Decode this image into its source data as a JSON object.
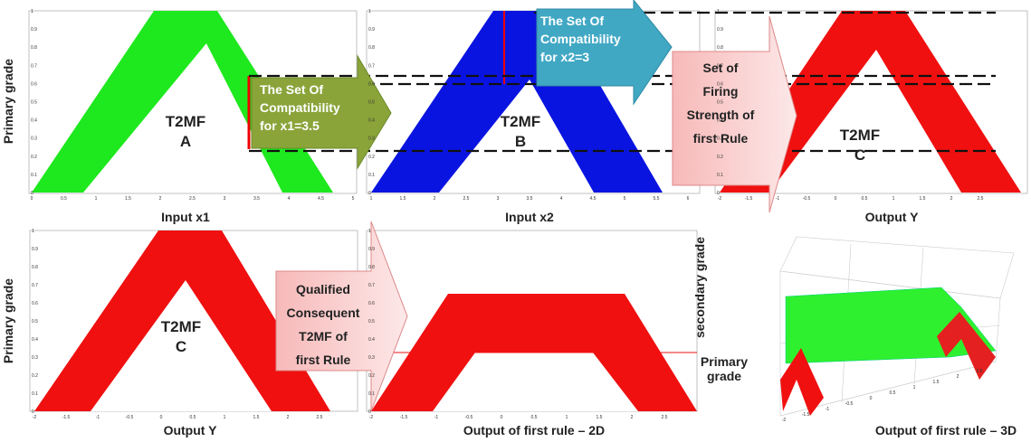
{
  "panels": [
    {
      "inner": [
        "T2MF",
        "A"
      ],
      "xlabel": "Input x1",
      "ylabel": "Primary grade",
      "xticks": [
        0,
        0.5,
        1,
        1.5,
        2,
        2.5,
        3,
        3.5,
        4,
        4.5,
        5
      ],
      "yticks": [
        0,
        0.1,
        0.2,
        0.3,
        0.4,
        0.5,
        0.6,
        0.7,
        0.8,
        0.9,
        1
      ]
    },
    {
      "inner": [
        "T2MF",
        "B"
      ],
      "xlabel": "Input x2",
      "xticks": [
        1,
        1.5,
        2,
        2.5,
        3,
        3.5,
        4,
        4.5,
        5,
        5.5,
        6
      ],
      "yticks": [
        0,
        0.1,
        0.2,
        0.3,
        0.4,
        0.5,
        0.6,
        0.7,
        0.8,
        0.9,
        1
      ]
    },
    {
      "inner": [
        "T2MF",
        "C"
      ],
      "xlabel": "Output  Y",
      "xticks": [
        -2,
        -1.5,
        -1,
        -0.5,
        0,
        0.5,
        1,
        1.5,
        2,
        2.5
      ],
      "yticks": [
        0,
        0.1,
        0.2,
        0.3,
        0.4,
        0.5,
        0.6,
        0.7,
        0.8,
        0.9,
        1
      ]
    },
    {
      "inner": [
        "T2MF",
        "C"
      ],
      "xlabel": "Output  Y",
      "ylabel": "Primary grade",
      "xticks": [
        -2,
        -1.5,
        -1,
        -0.5,
        0,
        0.5,
        1,
        1.5,
        2,
        2.5
      ],
      "yticks": [
        0,
        0.1,
        0.2,
        0.3,
        0.4,
        0.5,
        0.6,
        0.7,
        0.8,
        0.9,
        1
      ]
    },
    {
      "xlabel": "Output of first rule – 2D",
      "xticks": [
        -2,
        -1.5,
        -1,
        -0.5,
        0,
        0.5,
        1,
        1.5,
        2,
        2.5
      ],
      "yticks": [
        0,
        0.1,
        0.2,
        0.3,
        0.4,
        0.5,
        0.6,
        0.7,
        0.8,
        0.9,
        1
      ]
    },
    {
      "xlabel": "Output of first rule – 3D",
      "zlabel": "secondary grade",
      "ylabel": [
        "Primary",
        "grade"
      ],
      "xticks": [
        -2,
        -1.5,
        -1,
        -0.5,
        0,
        0.5,
        1,
        1.5,
        2,
        2.5
      ]
    }
  ],
  "arrows": [
    {
      "lines": [
        "The Set Of",
        "Compatibility",
        "for x1=3.5"
      ]
    },
    {
      "lines": [
        "The Set Of",
        "Compatibility",
        "for  x2=3"
      ]
    },
    {
      "lines": [
        "Set of",
        "Firing",
        "Strength of",
        "first Rule"
      ]
    },
    {
      "lines": [
        "Qualified",
        "Consequent",
        "T2MF of",
        "first Rule"
      ]
    }
  ]
}
